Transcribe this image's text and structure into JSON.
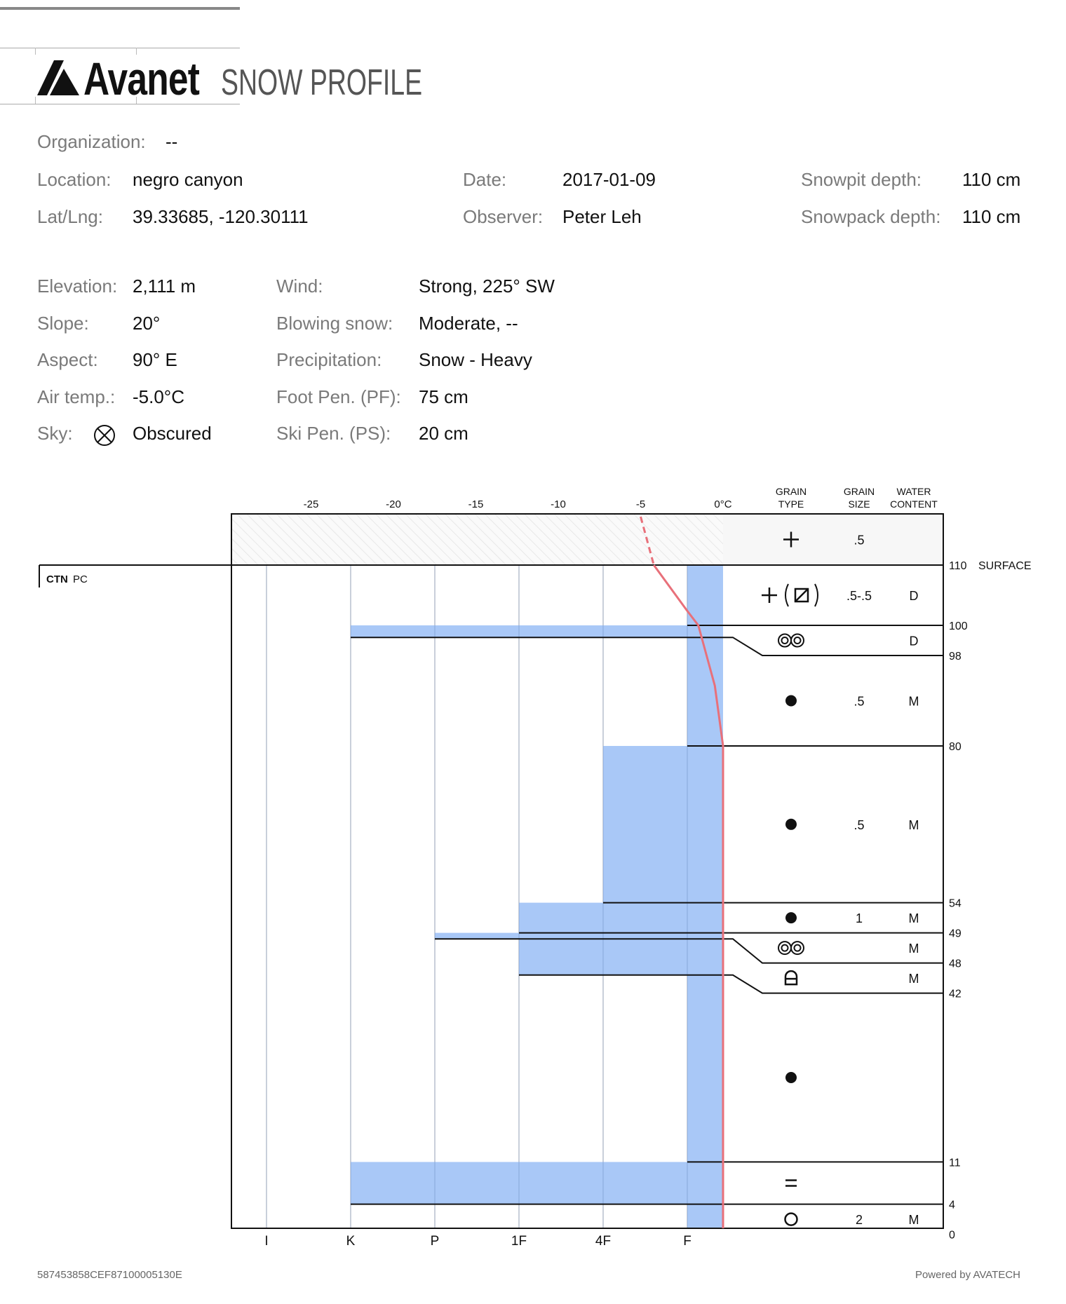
{
  "header": {
    "brand": "Avanet",
    "title": "SNOW PROFILE"
  },
  "info": {
    "organization": {
      "label": "Organization:",
      "value": "--"
    },
    "location": {
      "label": "Location:",
      "value": "negro canyon"
    },
    "latlng": {
      "label": "Lat/Lng:",
      "value": "39.33685, -120.30111"
    },
    "date": {
      "label": "Date:",
      "value": "2017-01-09"
    },
    "observer": {
      "label": "Observer:",
      "value": "Peter Leh"
    },
    "snowpit_depth": {
      "label": "Snowpit depth:",
      "value": "110 cm"
    },
    "snowpack_depth": {
      "label": "Snowpack depth:",
      "value": "110 cm"
    },
    "elevation": {
      "label": "Elevation:",
      "value": "2,111 m"
    },
    "slope": {
      "label": "Slope:",
      "value": "20°"
    },
    "aspect": {
      "label": "Aspect:",
      "value": "90° E"
    },
    "air_temp": {
      "label": "Air temp.:",
      "value": "-5.0°C"
    },
    "sky": {
      "label": "Sky:",
      "value": "Obscured",
      "icon": "circle-x-icon"
    },
    "wind": {
      "label": "Wind:",
      "value": "Strong, 225° SW"
    },
    "blowing_snow": {
      "label": "Blowing snow:",
      "value": "Moderate, --"
    },
    "precipitation": {
      "label": "Precipitation:",
      "value": "Snow - Heavy"
    },
    "foot_pen": {
      "label": "Foot Pen. (PF):",
      "value": "75 cm"
    },
    "ski_pen": {
      "label": "Ski Pen. (PS):",
      "value": "20 cm"
    }
  },
  "chart_data": {
    "type": "snow-profile",
    "temperature_axis": {
      "ticks": [
        "-25",
        "-20",
        "-15",
        "-10",
        "-5",
        "0°C"
      ],
      "values": [
        -25,
        -20,
        -15,
        -10,
        -5,
        0
      ]
    },
    "hardness_axis": {
      "ticks": [
        "I",
        "K",
        "P",
        "1F",
        "4F",
        "F"
      ]
    },
    "columns": {
      "grain_type": [
        "GRAIN",
        "TYPE"
      ],
      "grain_size": [
        "GRAIN",
        "SIZE"
      ],
      "water_content": [
        "WATER",
        "CONTENT"
      ]
    },
    "surface_label": "SURFACE",
    "test": {
      "label": "CTN",
      "detail": "PC"
    },
    "surface_row": {
      "grain": [
        "plus"
      ],
      "size": ".5"
    },
    "air_temp": -5,
    "temperature_profile": [
      [
        110,
        -4.2
      ],
      [
        102.5,
        -2.2
      ],
      [
        100,
        -1.5
      ],
      [
        90,
        -0.5
      ],
      [
        80,
        0
      ],
      [
        0,
        0
      ]
    ],
    "layers": [
      {
        "top": 110,
        "bottom": 100,
        "hardness": "F",
        "grain": [
          "plus",
          "(",
          "box-diagonal",
          ")"
        ],
        "size": ".5-.5",
        "water": "D"
      },
      {
        "top": 100,
        "bottom": 98,
        "hardness": "K",
        "grain": [
          "double-circle"
        ],
        "size": "",
        "water": "D"
      },
      {
        "top": 98,
        "bottom": 80,
        "hardness": "F",
        "grain": [
          "filled-circle"
        ],
        "size": ".5",
        "water": "M"
      },
      {
        "top": 80,
        "bottom": 54,
        "hardness": "4F",
        "grain": [
          "filled-circle"
        ],
        "size": ".5",
        "water": "M"
      },
      {
        "top": 54,
        "bottom": 49,
        "hardness": "1F",
        "grain": [
          "filled-circle"
        ],
        "size": "1",
        "water": "M"
      },
      {
        "top": 49,
        "bottom": 48,
        "hardness": "P",
        "grain": [
          "double-circle"
        ],
        "size": "",
        "water": "M"
      },
      {
        "top": 48,
        "bottom": 42,
        "hardness": "1F",
        "grain": [
          "arch-box"
        ],
        "size": "",
        "water": "M"
      },
      {
        "top": 42,
        "bottom": 11,
        "hardness": "F",
        "grain": [
          "filled-circle"
        ],
        "size": "",
        "water": ""
      },
      {
        "top": 11,
        "bottom": 4,
        "hardness": "K",
        "grain": [
          "equals"
        ],
        "size": "",
        "water": ""
      },
      {
        "top": 4,
        "bottom": 0,
        "hardness": "F",
        "grain": [
          "open-circle"
        ],
        "size": "2",
        "water": "M"
      }
    ],
    "depth_labels": [
      "110",
      "100",
      "98",
      "80",
      "54",
      "49",
      "48",
      "42",
      "11",
      "4",
      "0"
    ],
    "colors": {
      "hardness_fill": "#a9c8f7",
      "temperature": "#e8707a",
      "grid": "#dcdcdc"
    }
  },
  "footer": {
    "id": "587453858CEF87100005130E",
    "powered": "Powered by AVATECH"
  }
}
